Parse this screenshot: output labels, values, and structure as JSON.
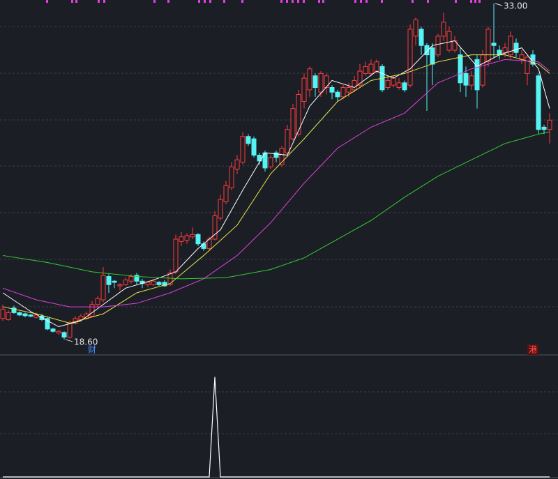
{
  "chart_data": {
    "type": "candlestick",
    "ylim": [
      17.97,
      33.15
    ],
    "up_color": "#ff3b3b",
    "down_color": "#54f4f4",
    "candles": {
      "open": [
        19.5,
        19.45,
        19.95,
        19.75,
        19.7,
        19.65,
        19.55,
        19.6,
        19.5,
        19.05,
        18.88,
        18.9,
        18.7,
        19.3,
        19.45,
        19.5,
        19.6,
        20.1,
        20.3,
        21.3,
        21.1,
        20.9,
        20.95,
        21.1,
        21.35,
        21.1,
        20.95,
        20.95,
        21.05,
        21.05,
        20.95,
        21.5,
        22.8,
        22.85,
        23.0,
        23.1,
        22.7,
        22.5,
        22.9,
        23.8,
        24.5,
        25.1,
        25.9,
        26.2,
        27.3,
        27.2,
        26.5,
        26.6,
        26.0,
        26.6,
        26.1,
        26.6,
        27.2,
        27.4,
        28.8,
        29.3,
        29.9,
        29.2,
        29.4,
        29.4,
        29.2,
        29.0,
        29.2,
        29.3,
        29.5,
        30.0,
        30.0,
        30.1,
        30.3,
        29.4,
        29.5,
        29.4,
        29.6,
        29.5,
        31.6,
        31.9,
        31.2,
        31.1,
        30.8,
        31.6,
        31.0,
        31.0,
        30.8,
        30.0,
        29.5,
        30.6,
        29.5,
        30.5,
        31.3,
        31.0,
        30.9,
        30.8,
        31.3,
        30.6,
        30.0,
        30.8,
        29.9,
        27.7,
        27.6
      ],
      "close": [
        19.9,
        19.75,
        19.75,
        19.65,
        19.62,
        19.6,
        19.65,
        19.45,
        19.05,
        18.95,
        18.95,
        18.7,
        19.3,
        19.5,
        19.6,
        19.7,
        20.1,
        20.35,
        21.35,
        20.95,
        21.05,
        20.95,
        21.15,
        21.3,
        21.1,
        21.0,
        21.05,
        21.1,
        20.95,
        20.9,
        21.45,
        22.9,
        23.0,
        23.05,
        23.1,
        22.7,
        22.5,
        22.9,
        23.9,
        24.6,
        25.2,
        26.0,
        26.3,
        27.3,
        27.0,
        26.5,
        26.25,
        25.95,
        26.4,
        26.4,
        26.8,
        27.6,
        28.5,
        29.1,
        29.8,
        30.2,
        29.4,
        30.0,
        29.9,
        29.2,
        29.0,
        29.4,
        29.4,
        29.7,
        30.1,
        30.3,
        30.4,
        30.5,
        29.3,
        29.7,
        29.8,
        29.6,
        29.3,
        31.9,
        32.3,
        31.2,
        30.8,
        30.4,
        31.6,
        32.2,
        31.8,
        31.4,
        29.6,
        29.5,
        29.9,
        29.3,
        30.8,
        31.9,
        31.2,
        30.8,
        31.1,
        31.6,
        30.9,
        30.8,
        30.7,
        30.4,
        27.6,
        27.6,
        28.0
      ],
      "high": [
        20.1,
        19.85,
        20.05,
        19.8,
        19.75,
        19.7,
        19.75,
        19.7,
        19.55,
        19.1,
        19.0,
        18.95,
        19.4,
        19.6,
        19.7,
        19.8,
        20.25,
        20.45,
        21.7,
        21.4,
        21.15,
        21.0,
        21.25,
        21.4,
        21.45,
        21.2,
        21.1,
        21.2,
        21.1,
        21.15,
        21.6,
        23.1,
        23.2,
        23.15,
        23.4,
        23.15,
        22.8,
        23.0,
        24.1,
        24.8,
        25.4,
        26.2,
        26.5,
        27.5,
        27.4,
        27.3,
        26.6,
        26.7,
        26.5,
        26.7,
        26.9,
        27.8,
        28.7,
        29.3,
        30.0,
        30.3,
        30.0,
        30.1,
        30.0,
        29.5,
        29.3,
        29.5,
        29.6,
        29.9,
        30.4,
        30.5,
        30.6,
        30.6,
        30.4,
        29.9,
        29.9,
        29.8,
        29.7,
        32.1,
        32.4,
        32.0,
        31.3,
        31.3,
        31.7,
        32.6,
        32.0,
        31.6,
        31.1,
        30.3,
        30.1,
        30.8,
        31.0,
        32.0,
        33.0,
        31.2,
        31.3,
        31.8,
        31.5,
        31.0,
        30.8,
        31.0,
        30.0,
        27.8,
        28.3
      ],
      "low": [
        19.4,
        19.4,
        19.7,
        19.6,
        19.55,
        19.55,
        19.5,
        19.4,
        19.0,
        18.9,
        18.8,
        18.6,
        18.65,
        19.25,
        19.4,
        19.45,
        19.55,
        20.0,
        20.2,
        20.6,
        20.8,
        20.7,
        20.9,
        21.0,
        20.95,
        20.8,
        20.85,
        20.9,
        20.9,
        20.85,
        20.9,
        21.4,
        22.6,
        22.7,
        22.9,
        22.6,
        22.4,
        22.4,
        22.85,
        23.7,
        24.4,
        25.0,
        25.7,
        26.1,
        26.9,
        26.4,
        26.1,
        25.8,
        25.9,
        26.2,
        26.0,
        26.5,
        27.1,
        27.3,
        28.5,
        29.0,
        29.0,
        29.0,
        29.1,
        28.9,
        28.8,
        28.9,
        29.0,
        29.2,
        29.4,
        29.9,
        29.9,
        30.0,
        29.2,
        29.3,
        29.4,
        29.3,
        29.2,
        29.4,
        31.2,
        30.8,
        28.4,
        29.5,
        30.7,
        31.4,
        30.9,
        30.9,
        29.2,
        29.0,
        29.3,
        28.5,
        29.4,
        30.3,
        30.7,
        30.6,
        30.7,
        30.6,
        30.7,
        30.4,
        29.5,
        30.3,
        27.4,
        27.4,
        27.0
      ]
    },
    "series": [
      {
        "color": "#ffffff",
        "x": [
          0,
          5,
          10,
          14,
          18,
          22,
          27,
          31,
          35,
          39,
          43,
          47,
          51,
          55,
          59,
          63,
          67,
          70,
          73,
          77,
          81,
          85,
          89,
          93,
          96,
          98
        ],
        "values": [
          20.6,
          19.8,
          19.15,
          19.4,
          20.1,
          20.8,
          21.15,
          21.5,
          22.5,
          23.3,
          25.0,
          26.6,
          26.5,
          28.6,
          29.7,
          29.4,
          30.1,
          29.8,
          30.2,
          31.2,
          31.4,
          30.3,
          30.8,
          31.1,
          30.2,
          28.5
        ]
      },
      {
        "color": "#e8e84a",
        "x": [
          0,
          6,
          12,
          18,
          24,
          30,
          36,
          42,
          48,
          54,
          60,
          66,
          72,
          78,
          84,
          90,
          96,
          98
        ],
        "values": [
          20.0,
          19.7,
          19.3,
          19.7,
          20.6,
          21.0,
          22.2,
          23.5,
          25.7,
          27.2,
          28.8,
          29.7,
          30.0,
          30.5,
          30.8,
          30.8,
          30.4,
          30.0
        ]
      },
      {
        "color": "#e040e0",
        "x": [
          0,
          6,
          12,
          18,
          24,
          30,
          36,
          42,
          48,
          54,
          60,
          66,
          72,
          78,
          84,
          90,
          96,
          98
        ],
        "values": [
          20.8,
          20.3,
          20.0,
          20.0,
          20.15,
          20.6,
          21.2,
          22.2,
          23.6,
          25.3,
          26.8,
          27.7,
          28.3,
          29.6,
          30.2,
          30.6,
          30.5,
          30.1
        ]
      },
      {
        "color": "#30d030",
        "x": [
          0,
          8,
          16,
          24,
          32,
          40,
          48,
          54,
          60,
          66,
          72,
          78,
          84,
          90,
          96,
          98
        ],
        "values": [
          22.2,
          21.9,
          21.5,
          21.3,
          21.2,
          21.25,
          21.6,
          22.1,
          22.9,
          23.7,
          24.7,
          25.6,
          26.3,
          27.0,
          27.4,
          27.5
        ]
      }
    ],
    "annotations": [
      {
        "label": "33.00",
        "value": 33.0,
        "index": 88
      },
      {
        "label": "18.60",
        "value": 18.6,
        "index": 11
      }
    ],
    "markers": [
      {
        "label": "财",
        "index": 16,
        "color": "#4a90ff"
      },
      {
        "label": "港",
        "index": 95,
        "color": "#ff5050"
      }
    ],
    "indicator": {
      "color": "#ffffff",
      "ylim": [
        0,
        1.2
      ],
      "x": [
        0,
        37,
        38,
        39,
        98
      ],
      "values": [
        0,
        0,
        1,
        0,
        0
      ]
    }
  }
}
